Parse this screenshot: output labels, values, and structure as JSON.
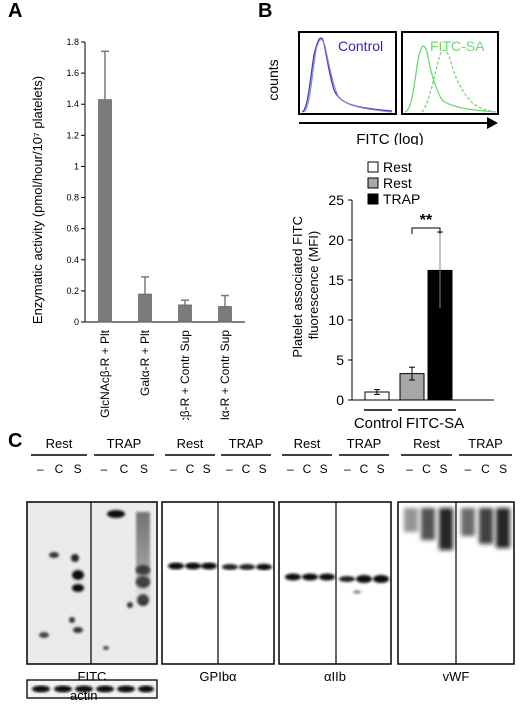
{
  "figure": {
    "panels": [
      {
        "letter": "A"
      },
      {
        "letter": "B"
      },
      {
        "letter": "C"
      }
    ]
  },
  "panel_b_histograms": {
    "yaxis_label": "counts",
    "xaxis_label": "FITC (log)",
    "left_label": "Control",
    "right_label": "FITC-SA",
    "left_color": "#2b2bb8",
    "right_color": "#6fd86f"
  },
  "panel_c": {
    "groups": [
      "Rest",
      "TRAP"
    ],
    "lanes": [
      "–",
      "C",
      "S"
    ],
    "blots": [
      {
        "label": "FITC"
      },
      {
        "label": "GPIbα"
      },
      {
        "label": "αIIb"
      },
      {
        "label": "vWF"
      }
    ],
    "loading_label": "actin"
  },
  "chart_data": [
    {
      "type": "bar",
      "ylabel": "Enzymatic activity (pmol/hour/10⁷ platelets)",
      "categories": [
        "GlcNAcβ-R + Plt",
        "Galα-R + Plt",
        "GlcNAcβ-R + Contr Sup",
        "Galα-R + Contr Sup"
      ],
      "values": [
        1.43,
        0.18,
        0.11,
        0.1
      ],
      "errors": [
        0.31,
        0.11,
        0.03,
        0.07
      ],
      "ylim": [
        0,
        1.8
      ],
      "yticks": [
        "0",
        "0.2",
        "0.4",
        "0.6",
        "0.8",
        "1",
        "1.2",
        "1.4",
        "1.6",
        "1.8"
      ],
      "bar_color": "#7a7a7a"
    },
    {
      "type": "bar",
      "ylabel": "Platelet associated FITC fluorescence (MFI)",
      "xgroups": [
        "Control",
        "FITC-SA"
      ],
      "categories": [
        "Rest",
        "Rest",
        "TRAP"
      ],
      "values": [
        1.0,
        3.3,
        16.2
      ],
      "errors": [
        0.3,
        0.8,
        4.8
      ],
      "colors": [
        "#ffffff",
        "#a8a8a8",
        "#000000"
      ],
      "ylim": [
        0,
        25
      ],
      "yticks": [
        "0",
        "5",
        "10",
        "15",
        "20",
        "25"
      ],
      "legend": [
        "Rest",
        "Rest",
        "TRAP"
      ],
      "legend_position": "top-left",
      "annotation": "**"
    }
  ]
}
